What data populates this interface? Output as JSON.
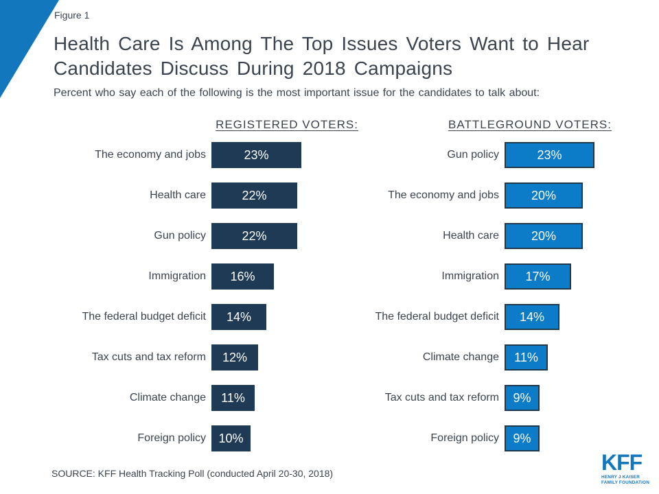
{
  "figure_label": "Figure 1",
  "title_line1": "Health Care Is Among The Top Issues Voters Want to Hear",
  "title_line2": "Candidates Discuss During 2018 Campaigns",
  "subtitle": "Percent who say each of the following is the most important issue for the candidates to talk about:",
  "source": "SOURCE: KFF Health Tracking Poll (conducted April 20-30, 2018)",
  "logo": {
    "text": "KFF",
    "sub_line1": "HENRY J KAISER",
    "sub_line2": "FAMILY FOUNDATION"
  },
  "colors": {
    "accent": "#1277bd",
    "navy_bar": "#1f3a55",
    "blue_bar": "#0c7cc9",
    "blue_bar_border": "#20384c",
    "logo_blue": "#1277bd",
    "text_dark": "#3a434e"
  },
  "chart_data": {
    "type": "bar",
    "orientation": "horizontal",
    "title": "Health Care Is Among The Top Issues Voters Want to Hear Candidates Discuss During 2018 Campaigns",
    "subtitle": "Percent who say each of the following is the most important issue for the candidates to talk about:",
    "value_suffix": "%",
    "xlim": [
      0,
      25
    ],
    "axes_visible": false,
    "grid": false,
    "legend_position": "none",
    "groups": [
      {
        "header": "REGISTERED VOTERS:",
        "color": "#1f3a55",
        "border_color": "",
        "items": [
          {
            "label": "The economy and jobs",
            "value": 23,
            "display": "23%"
          },
          {
            "label": "Health care",
            "value": 22,
            "display": "22%"
          },
          {
            "label": "Gun policy",
            "value": 22,
            "display": "22%"
          },
          {
            "label": "Immigration",
            "value": 16,
            "display": "16%"
          },
          {
            "label": "The federal budget deficit",
            "value": 14,
            "display": "14%"
          },
          {
            "label": "Tax cuts and tax reform",
            "value": 12,
            "display": "12%"
          },
          {
            "label": "Climate change",
            "value": 11,
            "display": "11%"
          },
          {
            "label": "Foreign policy",
            "value": 10,
            "display": "10%"
          }
        ]
      },
      {
        "header": "BATTLEGROUND VOTERS:",
        "color": "#0c7cc9",
        "border_color": "#20384c",
        "items": [
          {
            "label": "Gun policy",
            "value": 23,
            "display": "23%"
          },
          {
            "label": "The economy and jobs",
            "value": 20,
            "display": "20%"
          },
          {
            "label": "Health care",
            "value": 20,
            "display": "20%"
          },
          {
            "label": "Immigration",
            "value": 17,
            "display": "17%"
          },
          {
            "label": "The federal budget deficit",
            "value": 14,
            "display": "14%"
          },
          {
            "label": "Climate change",
            "value": 11,
            "display": "11%"
          },
          {
            "label": "Tax cuts and tax reform",
            "value": 9,
            "display": "9%"
          },
          {
            "label": "Foreign policy",
            "value": 9,
            "display": "9%"
          }
        ]
      }
    ]
  }
}
